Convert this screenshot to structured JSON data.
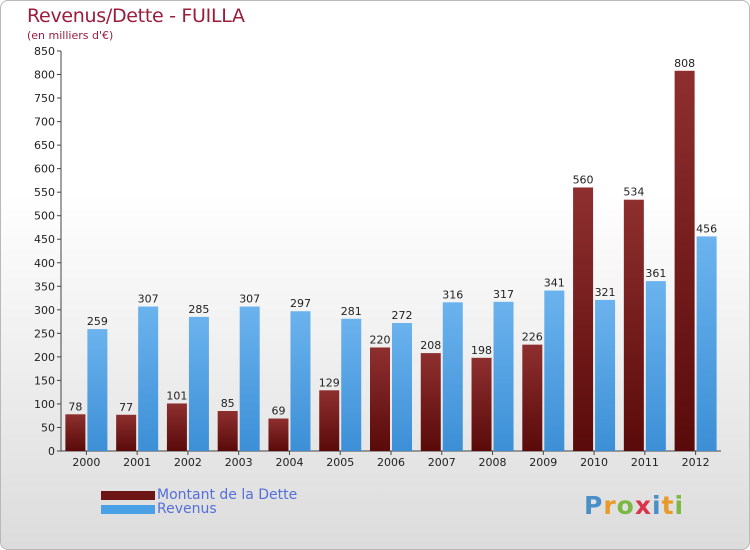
{
  "title": "Revenus/Dette - FUILLA",
  "subtitle": "(en milliers d'€)",
  "logo": {
    "letters": [
      "P",
      "r",
      "o",
      "x",
      "i",
      "t",
      "i"
    ],
    "colors": [
      "#4a90c8",
      "#e89a2a",
      "#7cb844",
      "#d8344a",
      "#4a90c8",
      "#e89a2a",
      "#7cb844"
    ]
  },
  "colors": {
    "dette_dark": "#5a0a0a",
    "dette_light": "#8e2f2f",
    "revenus_dark": "#3c8fd6",
    "revenus_light": "#6bb3ee",
    "title": "#9b1c3c",
    "legend_text": "#5470d8"
  },
  "legend": [
    {
      "label": "Montant de la Dette",
      "color": "#6e1515"
    },
    {
      "label": "Revenus",
      "color": "#4aa0e4"
    }
  ],
  "chart_data": {
    "type": "bar",
    "title": "Revenus/Dette - FUILLA",
    "subtitle": "(en milliers d'€)",
    "categories": [
      "2000",
      "2001",
      "2002",
      "2003",
      "2004",
      "2005",
      "2006",
      "2007",
      "2008",
      "2009",
      "2010",
      "2011",
      "2012"
    ],
    "series": [
      {
        "name": "Montant de la Dette",
        "values": [
          78,
          77,
          101,
          85,
          69,
          129,
          220,
          208,
          198,
          226,
          560,
          534,
          808
        ]
      },
      {
        "name": "Revenus",
        "values": [
          259,
          307,
          285,
          307,
          297,
          281,
          272,
          316,
          317,
          341,
          321,
          361,
          456
        ]
      }
    ],
    "ylim": [
      0,
      850
    ],
    "yticks": [
      0,
      50,
      100,
      150,
      200,
      250,
      300,
      350,
      400,
      450,
      500,
      550,
      600,
      650,
      700,
      750,
      800,
      850
    ],
    "grid": false,
    "legend_position": "bottom-left"
  }
}
